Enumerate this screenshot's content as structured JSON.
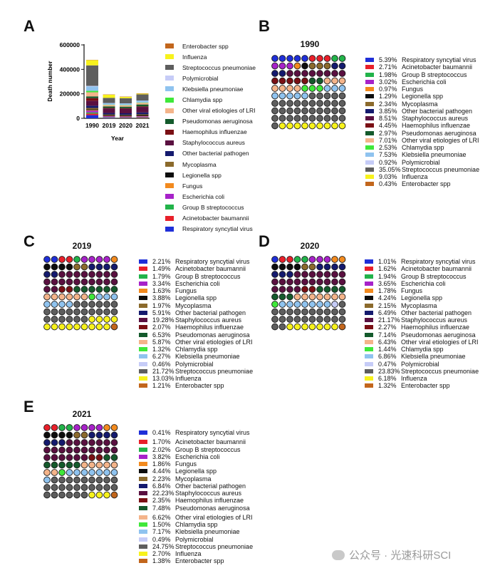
{
  "colors": {
    "Respiratory syncytial virus": "#1f2fd8",
    "Acinetobacter baumannii": "#e8202a",
    "Group B streptococcus": "#22b34a",
    "Escherichia coli": "#a722c9",
    "Fungus": "#f28a1e",
    "Legionella spp": "#0d0d0d",
    "Mycoplasma": "#8b6a2c",
    "Other bacterial pathogen": "#141a6e",
    "Staphylococcus aureus": "#5a1040",
    "Haemophilus influenzae": "#7a0f14",
    "Pseudomonas aeruginosa": "#145a2c",
    "Other viral etiologies of LRI": "#f4b48a",
    "Chlamydia spp": "#3fe83a",
    "Klebsiella pneumoniae": "#8fc3ef",
    "Polymicrobial": "#c6ccf7",
    "Streptococcus pneumoniae": "#5e5e5e",
    "Influenza": "#f7f21c",
    "Enterobacter spp": "#c2661c"
  },
  "panels": {
    "A": {
      "letter": "A",
      "ylabel": "Death number",
      "xlabel": "Year"
    },
    "B": {
      "letter": "B"
    },
    "C": {
      "letter": "C"
    },
    "D": {
      "letter": "D"
    },
    "E": {
      "letter": "E"
    }
  },
  "legend_a": [
    "Enterobacter spp",
    "Influenza",
    "Streptococcus pneumoniae",
    "Polymicrobial",
    "Klebsiella pneumoniae",
    "Chlamydia spp",
    "Other viral etiologies of LRI",
    "Pseudomonas aeruginosa",
    "Haemophilus influenzae",
    "Staphylococcus aureus",
    "Other bacterial pathogen",
    "Mycoplasma",
    "Legionella spp",
    "Fungus",
    "Escherichia coli",
    "Group B streptococcus",
    "Acinetobacter baumannii",
    "Respiratory syncytial virus"
  ],
  "chart_data": [
    {
      "panel": "A",
      "type": "bar",
      "stacked": true,
      "title": "",
      "xlabel": "Year",
      "ylabel": "Death number",
      "ylim": [
        0,
        600000
      ],
      "yticks": [
        "0",
        "200000",
        "400000",
        "600000"
      ],
      "categories": [
        "1990",
        "2019",
        "2020",
        "2021"
      ],
      "totals": [
        478000,
        195000,
        178000,
        204000
      ]
    },
    {
      "panel": "B",
      "type": "waffle",
      "title": "1990",
      "labels": [
        "Respiratory syncytial virus",
        "Acinetobacter baumannii",
        "Group B streptococcus",
        "Escherichia coli",
        "Fungus",
        "Legionella spp",
        "Mycoplasma",
        "Other bacterial pathogen",
        "Staphylococcus aureus",
        "Haemophilus influenzae",
        "Pseudomonas aeruginosa",
        "Other viral etiologies of LRI",
        "Chlamydia spp",
        "Klebsiella pneumoniae",
        "Polymicrobial",
        "Streptococcus pneumoniae",
        "Influenza",
        "Enterobacter spp"
      ],
      "values": [
        5.39,
        2.71,
        1.98,
        3.02,
        0.97,
        1.29,
        2.34,
        3.85,
        8.51,
        4.45,
        2.97,
        7.01,
        2.53,
        7.53,
        0.92,
        35.05,
        9.03,
        0.43
      ],
      "display": [
        "5.39%",
        "2.71%",
        "1.98%",
        "3.02%",
        "0.97%",
        "1.29%",
        "2.34%",
        "3.85%",
        "8.51%",
        "4.45%",
        "2.97%",
        "7.01%",
        "2.53%",
        "7.53%",
        "0.92%",
        "35.05%",
        "9.03%",
        "0.43%"
      ]
    },
    {
      "panel": "C",
      "type": "waffle",
      "title": "2019",
      "labels": [
        "Respiratory syncytial virus",
        "Acinetobacter baumannii",
        "Group B streptococcus",
        "Escherichia coli",
        "Fungus",
        "Legionella spp",
        "Mycoplasma",
        "Other bacterial pathogen",
        "Staphylococcus aureus",
        "Haemophilus influenzae",
        "Pseudomonas aeruginosa",
        "Other viral etiologies of LRI",
        "Chlamydia spp",
        "Klebsiella pneumoniae",
        "Polymicrobial",
        "Streptococcus pneumoniae",
        "Influenza",
        "Enterobacter spp"
      ],
      "values": [
        2.21,
        1.49,
        1.79,
        3.34,
        1.63,
        3.88,
        1.97,
        5.91,
        19.28,
        2.07,
        6.53,
        5.87,
        1.32,
        6.27,
        0.46,
        21.72,
        13.03,
        1.21
      ],
      "display": [
        "2.21%",
        "1.49%",
        "1.79%",
        "3.34%",
        "1.63%",
        "3.88%",
        "1.97%",
        "5.91%",
        "19.28%",
        "2.07%",
        "6.53%",
        "5.87%",
        "1.32%",
        "6.27%",
        "0.46%",
        "21.72%",
        "13.03%",
        "1.21%"
      ]
    },
    {
      "panel": "D",
      "type": "waffle",
      "title": "2020",
      "labels": [
        "Respiratory syncytial virus",
        "Acinetobacter baumannii",
        "Group B streptococcus",
        "Escherichia coli",
        "Fungus",
        "Legionella spp",
        "Mycoplasma",
        "Other bacterial pathogen",
        "Staphylococcus aureus",
        "Haemophilus influenzae",
        "Pseudomonas aeruginosa",
        "Other viral etiologies of LRI",
        "Chlamydia spp",
        "Klebsiella pneumoniae",
        "Polymicrobial",
        "Streptococcus pneumoniae",
        "Influenza",
        "Enterobacter spp"
      ],
      "values": [
        1.01,
        1.62,
        1.94,
        3.65,
        1.78,
        4.24,
        2.15,
        6.49,
        21.17,
        2.27,
        7.14,
        6.43,
        1.44,
        6.86,
        0.47,
        23.83,
        6.18,
        1.32
      ],
      "display": [
        "1.01%",
        "1.62%",
        "1.94%",
        "3.65%",
        "1.78%",
        "4.24%",
        "2.15%",
        "6.49%",
        "21.17%",
        "2.27%",
        "7.14%",
        "6.43%",
        "1.44%",
        "6.86%",
        "0.47%",
        "23.83%",
        "6.18%",
        "1.32%"
      ]
    },
    {
      "panel": "E",
      "type": "waffle",
      "title": "2021",
      "labels": [
        "Respiratory syncytial virus",
        "Acinetobacter baumannii",
        "Group B streptococcus",
        "Escherichia coli",
        "Fungus",
        "Legionella spp",
        "Mycoplasma",
        "Other bacterial pathogen",
        "Staphylococcus aureus",
        "Haemophilus influenzae",
        "Pseudomonas aeruginosa",
        "Other viral etiologies of LRI",
        "Chlamydia spp",
        "Klebsiella pneumoniae",
        "Polymicrobial",
        "Streptococcus pneumoniae",
        "Influenza",
        "Enterobacter spp"
      ],
      "values": [
        0.41,
        1.7,
        2.02,
        3.82,
        1.86,
        4.44,
        2.23,
        6.84,
        22.23,
        2.35,
        7.48,
        6.62,
        1.5,
        7.17,
        0.49,
        24.75,
        2.7,
        1.38
      ],
      "display": [
        "0.41%",
        "1.70%",
        "2.02%",
        "3.82%",
        "1.86%",
        "4.44%",
        "2.23%",
        "6.84%",
        "22.23%",
        "2.35%",
        "7.48%",
        "6.62%",
        "1.50%",
        "7.17%",
        "0.49%",
        "24.75%",
        "2.70%",
        "1.38%"
      ]
    }
  ],
  "watermark": "公众号 · 光速科研SCI"
}
